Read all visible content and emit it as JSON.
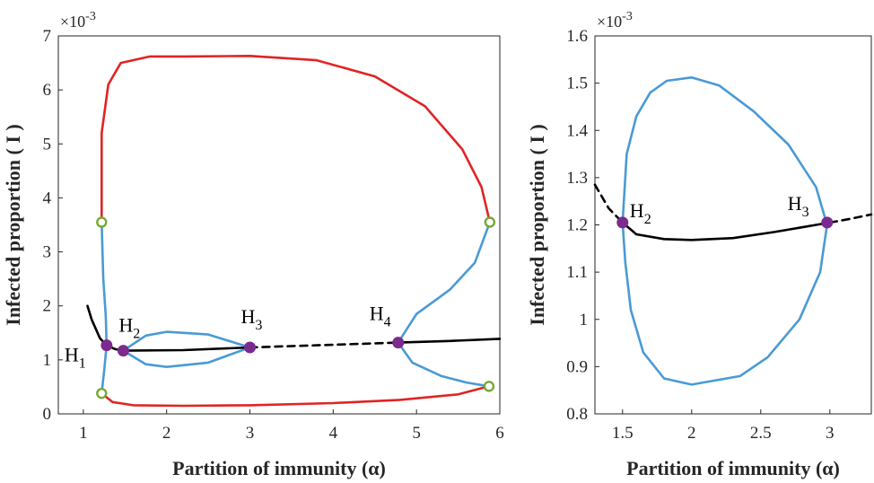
{
  "chart_data": [
    {
      "type": "line",
      "xlabel": "Partition of immunity (α)",
      "ylabel": "Infected proportion ( I )",
      "y_scale_label": "×10-3",
      "xlim": [
        0.7,
        6.0
      ],
      "ylim": [
        0,
        7
      ],
      "x_ticks": [
        "1",
        "2",
        "3",
        "4",
        "5",
        "6"
      ],
      "y_ticks": [
        "0",
        "1",
        "2",
        "3",
        "4",
        "5",
        "6",
        "7"
      ],
      "colors": {
        "outer_cycle": "#e02424",
        "inner_cycle": "#4a9ad4",
        "equilibrium": "#000000",
        "hopf": "#7b2a8e",
        "fold": "#76a934"
      },
      "equilibrium_solid": [
        [
          1.05,
          2.0
        ],
        [
          1.1,
          1.75
        ],
        [
          1.2,
          1.4
        ],
        [
          1.28,
          1.27
        ],
        [
          1.38,
          1.2
        ],
        [
          1.48,
          1.17
        ],
        [
          2.2,
          1.18
        ],
        [
          3.0,
          1.23
        ]
      ],
      "equilibrium_dashed": [
        [
          3.0,
          1.23
        ],
        [
          4.0,
          1.28
        ],
        [
          4.78,
          1.32
        ]
      ],
      "equilibrium_solid_right": [
        [
          4.78,
          1.32
        ],
        [
          5.4,
          1.35
        ],
        [
          6.0,
          1.39
        ]
      ],
      "outer_cycle_upper": [
        [
          1.22,
          3.55
        ],
        [
          1.22,
          5.2
        ],
        [
          1.3,
          6.1
        ],
        [
          1.45,
          6.5
        ],
        [
          1.8,
          6.62
        ],
        [
          2.2,
          6.62
        ],
        [
          3.0,
          6.63
        ],
        [
          3.8,
          6.55
        ],
        [
          4.5,
          6.25
        ],
        [
          5.1,
          5.7
        ],
        [
          5.55,
          4.9
        ],
        [
          5.78,
          4.2
        ],
        [
          5.88,
          3.55
        ]
      ],
      "outer_cycle_lower": [
        [
          1.22,
          0.38
        ],
        [
          1.35,
          0.22
        ],
        [
          1.6,
          0.16
        ],
        [
          2.2,
          0.15
        ],
        [
          3.0,
          0.16
        ],
        [
          4.0,
          0.2
        ],
        [
          4.8,
          0.26
        ],
        [
          5.5,
          0.36
        ],
        [
          5.87,
          0.51
        ]
      ],
      "inner_cycle_left": [
        [
          1.22,
          3.55
        ],
        [
          1.24,
          2.5
        ],
        [
          1.27,
          1.8
        ],
        [
          1.28,
          1.27
        ],
        [
          1.25,
          0.8
        ],
        [
          1.22,
          0.38
        ]
      ],
      "inner_cycle_right": [
        [
          5.88,
          3.55
        ],
        [
          5.7,
          2.8
        ],
        [
          5.4,
          2.3
        ],
        [
          5.0,
          1.85
        ],
        [
          4.78,
          1.32
        ],
        [
          4.95,
          0.95
        ],
        [
          5.3,
          0.7
        ],
        [
          5.6,
          0.58
        ],
        [
          5.87,
          0.51
        ]
      ],
      "inner_loop_upper": [
        [
          1.48,
          1.17
        ],
        [
          1.75,
          1.45
        ],
        [
          2.0,
          1.52
        ],
        [
          2.5,
          1.47
        ],
        [
          3.0,
          1.23
        ]
      ],
      "inner_loop_lower": [
        [
          1.48,
          1.17
        ],
        [
          1.75,
          0.92
        ],
        [
          2.0,
          0.87
        ],
        [
          2.5,
          0.95
        ],
        [
          3.0,
          1.23
        ]
      ],
      "hopf_points": [
        {
          "name": "H",
          "sub": "1",
          "x": 1.28,
          "y": 1.27
        },
        {
          "name": "H",
          "sub": "2",
          "x": 1.48,
          "y": 1.17
        },
        {
          "name": "H",
          "sub": "3",
          "x": 3.0,
          "y": 1.23
        },
        {
          "name": "H",
          "sub": "4",
          "x": 4.78,
          "y": 1.32
        }
      ],
      "fold_points": [
        {
          "x": 1.22,
          "y": 3.55
        },
        {
          "x": 1.22,
          "y": 0.38
        },
        {
          "x": 5.88,
          "y": 3.55
        },
        {
          "x": 5.87,
          "y": 0.51
        }
      ]
    },
    {
      "type": "line",
      "xlabel": "Partition of immunity (α)",
      "ylabel": "Infected proportion ( I )",
      "y_scale_label": "×10-3",
      "xlim": [
        1.3,
        3.3
      ],
      "ylim": [
        0.8,
        1.6
      ],
      "x_ticks": [
        "1.5",
        "2",
        "2.5",
        "3"
      ],
      "y_ticks": [
        "0.8",
        "0.9",
        "1",
        "1.1",
        "1.2",
        "1.3",
        "1.4",
        "1.5",
        "1.6"
      ],
      "equilibrium_dashed_left": [
        [
          1.3,
          1.285
        ],
        [
          1.4,
          1.235
        ],
        [
          1.5,
          1.205
        ]
      ],
      "equilibrium_solid": [
        [
          1.5,
          1.205
        ],
        [
          1.6,
          1.18
        ],
        [
          1.8,
          1.17
        ],
        [
          2.0,
          1.168
        ],
        [
          2.3,
          1.172
        ],
        [
          2.6,
          1.185
        ],
        [
          3.0,
          1.205
        ]
      ],
      "equilibrium_dashed_right": [
        [
          3.0,
          1.205
        ],
        [
          3.15,
          1.213
        ],
        [
          3.3,
          1.222
        ]
      ],
      "cycle": [
        [
          1.5,
          1.205
        ],
        [
          1.53,
          1.35
        ],
        [
          1.6,
          1.43
        ],
        [
          1.7,
          1.48
        ],
        [
          1.82,
          1.505
        ],
        [
          2.0,
          1.512
        ],
        [
          2.2,
          1.495
        ],
        [
          2.45,
          1.44
        ],
        [
          2.7,
          1.37
        ],
        [
          2.9,
          1.28
        ],
        [
          2.98,
          1.2
        ],
        [
          2.93,
          1.1
        ],
        [
          2.78,
          1.0
        ],
        [
          2.55,
          0.92
        ],
        [
          2.35,
          0.88
        ],
        [
          2.0,
          0.862
        ],
        [
          1.8,
          0.875
        ],
        [
          1.65,
          0.93
        ],
        [
          1.56,
          1.02
        ],
        [
          1.52,
          1.12
        ],
        [
          1.5,
          1.205
        ]
      ],
      "hopf_points": [
        {
          "name": "H",
          "sub": "2",
          "x": 1.5,
          "y": 1.205
        },
        {
          "name": "H",
          "sub": "3",
          "x": 2.98,
          "y": 1.205
        }
      ]
    }
  ]
}
